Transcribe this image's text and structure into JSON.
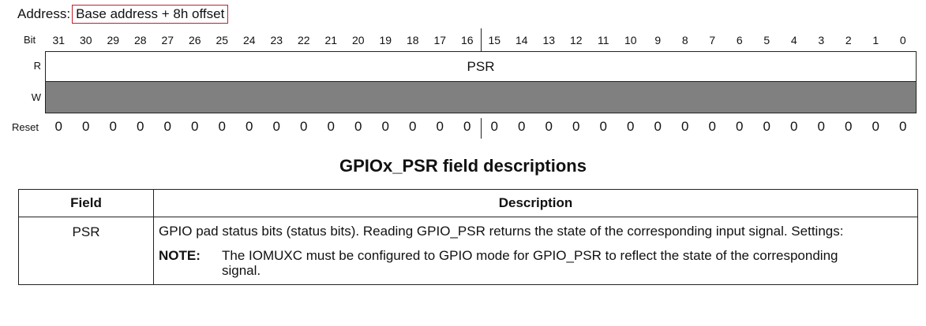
{
  "address": {
    "label": "Address:",
    "value": "Base address + 8h offset"
  },
  "register": {
    "bit_caption": "Bit",
    "bits": [
      "31",
      "30",
      "29",
      "28",
      "27",
      "26",
      "25",
      "24",
      "23",
      "22",
      "21",
      "20",
      "19",
      "18",
      "17",
      "16",
      "15",
      "14",
      "13",
      "12",
      "11",
      "10",
      "9",
      "8",
      "7",
      "6",
      "5",
      "4",
      "3",
      "2",
      "1",
      "0"
    ],
    "r_label": "R",
    "w_label": "W",
    "field_name": "PSR",
    "reset_caption": "Reset",
    "reset_values": [
      "0",
      "0",
      "0",
      "0",
      "0",
      "0",
      "0",
      "0",
      "0",
      "0",
      "0",
      "0",
      "0",
      "0",
      "0",
      "0",
      "0",
      "0",
      "0",
      "0",
      "0",
      "0",
      "0",
      "0",
      "0",
      "0",
      "0",
      "0",
      "0",
      "0",
      "0",
      "0"
    ],
    "w_fill_color": "#808080"
  },
  "table": {
    "title": "GPIOx_PSR field descriptions",
    "headers": {
      "field": "Field",
      "description": "Description"
    },
    "rows": [
      {
        "field": "PSR",
        "description": "GPIO pad status bits (status bits). Reading GPIO_PSR returns the state of the corresponding input signal. Settings:",
        "note_label": "NOTE:",
        "note_text": "The IOMUXC must be configured to GPIO mode for GPIO_PSR to reflect the state of the corresponding signal."
      }
    ]
  },
  "colors": {
    "address_box_border": "#c0202a"
  }
}
